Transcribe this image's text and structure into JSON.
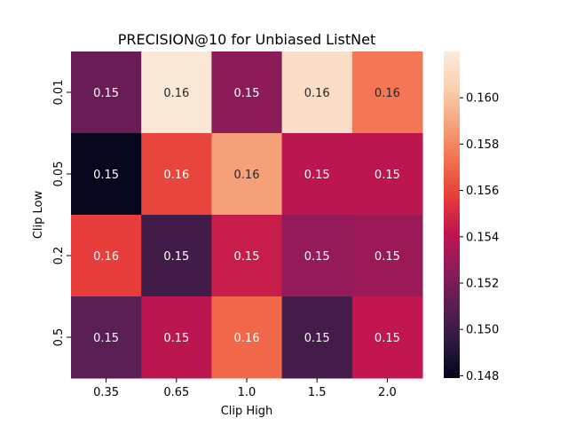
{
  "chart_data": {
    "type": "heatmap",
    "title": "PRECISION@10 for Unbiased ListNet",
    "xlabel": "Clip High",
    "ylabel": "Clip Low",
    "x_categories": [
      "0.35",
      "0.65",
      "1.0",
      "1.5",
      "2.0"
    ],
    "y_categories": [
      "0.01",
      "0.05",
      "0.2",
      "0.5"
    ],
    "values": [
      [
        0.1515,
        0.1618,
        0.1525,
        0.1612,
        0.1575
      ],
      [
        0.148,
        0.156,
        0.1588,
        0.154,
        0.154
      ],
      [
        0.1558,
        0.1502,
        0.1545,
        0.1528,
        0.153
      ],
      [
        0.151,
        0.154,
        0.157,
        0.1503,
        0.1542
      ]
    ],
    "cell_labels": [
      [
        "0.15",
        "0.16",
        "0.15",
        "0.16",
        "0.16"
      ],
      [
        "0.15",
        "0.16",
        "0.16",
        "0.15",
        "0.15"
      ],
      [
        "0.16",
        "0.15",
        "0.15",
        "0.15",
        "0.15"
      ],
      [
        "0.15",
        "0.15",
        "0.16",
        "0.15",
        "0.15"
      ]
    ],
    "colorbar": {
      "range": [
        0.1479,
        0.162
      ],
      "ticks": [
        "0.148",
        "0.150",
        "0.152",
        "0.154",
        "0.156",
        "0.158",
        "0.160"
      ]
    },
    "colormap": [
      "#03051a",
      "#2b1a3f",
      "#5a1e52",
      "#8e1b5a",
      "#c0154f",
      "#e63c3a",
      "#f3714e",
      "#f6a27c",
      "#f9d0b0",
      "#faebdd"
    ]
  }
}
